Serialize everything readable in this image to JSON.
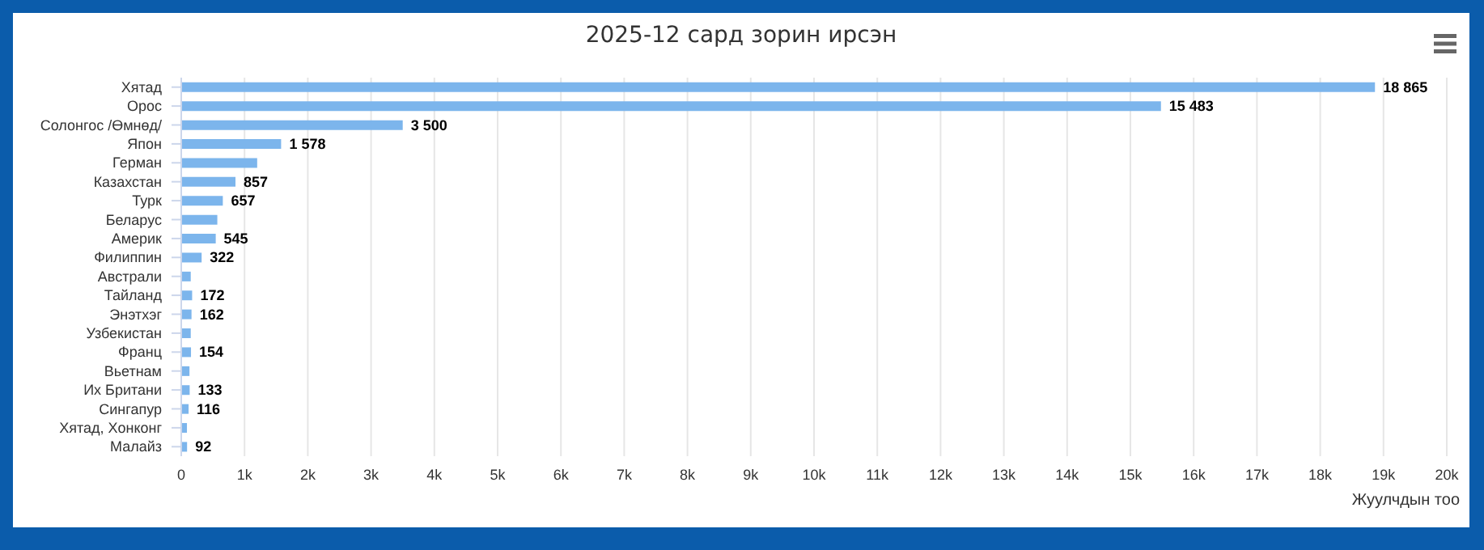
{
  "chart_data": {
    "type": "bar",
    "orientation": "horizontal",
    "title": "2025-12 сард зорин ирсэн",
    "xlabel": "Жуулчдын тоо",
    "categories": [
      "Хятад",
      "Орос",
      "Солонгос /Өмнөд/",
      "Япон",
      "Герман",
      "Казахстан",
      "Турк",
      "Беларус",
      "Америк",
      "Филиппин",
      "Австрали",
      "Тайланд",
      "Энэтхэг",
      "Узбекистан",
      "Франц",
      "Вьетнам",
      "Их Британи",
      "Сингапур",
      "Хятад, Хонконг",
      "Малайз"
    ],
    "values": [
      18865,
      15483,
      3500,
      1578,
      1200,
      857,
      657,
      570,
      545,
      322,
      150,
      172,
      162,
      150,
      154,
      130,
      133,
      116,
      90,
      92
    ],
    "value_labels": [
      "18 865",
      "15 483",
      "3 500",
      "1 578",
      null,
      "857",
      "657",
      null,
      "545",
      "322",
      null,
      "172",
      "162",
      null,
      "154",
      null,
      "133",
      "116",
      null,
      "92"
    ],
    "color": "#7cb5ec",
    "xlim": [
      0,
      20000
    ],
    "xticks": [
      0,
      {
        "value": 1000,
        "label": "1k"
      },
      {
        "value": 2000,
        "label": "2k"
      },
      {
        "value": 3000,
        "label": "3k"
      },
      {
        "value": 4000,
        "label": "4k"
      },
      {
        "value": 5000,
        "label": "5k"
      },
      {
        "value": 6000,
        "label": "6k"
      },
      {
        "value": 7000,
        "label": "7k"
      },
      {
        "value": 8000,
        "label": "8k"
      },
      {
        "value": 9000,
        "label": "9k"
      },
      {
        "value": 10000,
        "label": "10k"
      },
      {
        "value": 11000,
        "label": "11k"
      },
      {
        "value": 12000,
        "label": "12k"
      },
      {
        "value": 13000,
        "label": "13k"
      },
      {
        "value": 14000,
        "label": "14k"
      },
      {
        "value": 15000,
        "label": "15k"
      },
      {
        "value": 16000,
        "label": "16k"
      },
      {
        "value": 17000,
        "label": "17k"
      },
      {
        "value": 18000,
        "label": "18k"
      },
      {
        "value": 19000,
        "label": "19k"
      },
      {
        "value": 20000,
        "label": "20k"
      }
    ],
    "grid": "x"
  }
}
